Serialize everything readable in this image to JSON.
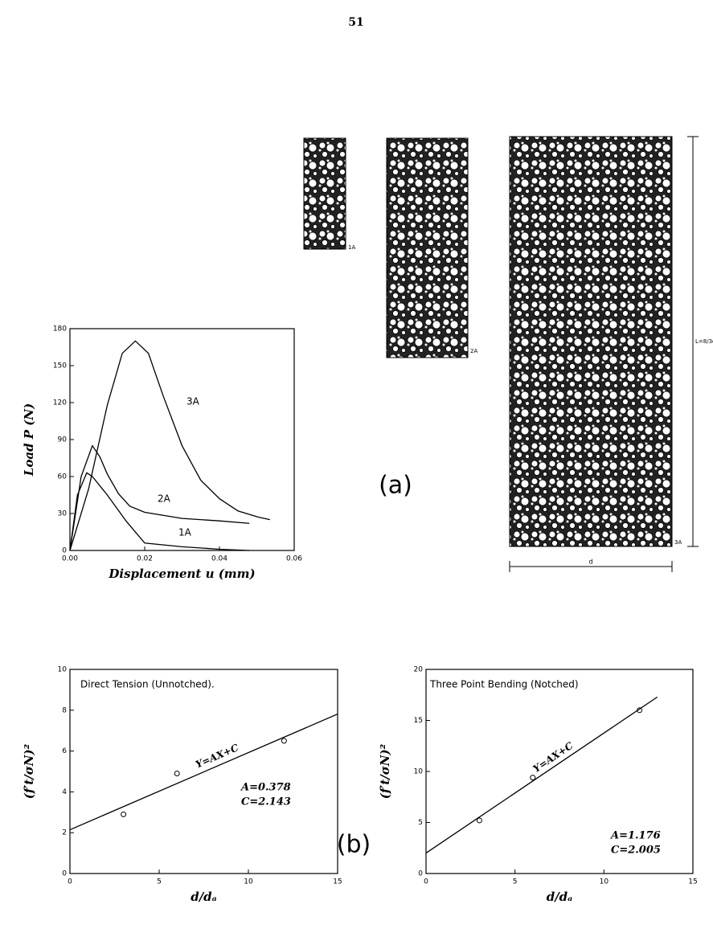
{
  "page_number": "51",
  "figure": {
    "label_a": "(a)",
    "label_b": "(b)",
    "specimens": [
      {
        "label": "1A"
      },
      {
        "label": "2A"
      },
      {
        "label": "3A"
      }
    ],
    "dim_length": "L=8/3d",
    "dim_width": "d"
  },
  "chart_data": [
    {
      "type": "line",
      "ylabel": "Load P (N)",
      "xlabel": "Displacement u (mm)",
      "xlim": [
        0,
        0.06
      ],
      "xticks": [
        {
          "value": 0,
          "label": "0.00"
        },
        {
          "value": 0.02,
          "label": "0.02"
        },
        {
          "value": 0.04,
          "label": "0.04"
        },
        {
          "value": 0.06,
          "label": "0.06"
        }
      ],
      "ylim": [
        0,
        180
      ],
      "yticks": [
        0,
        30,
        60,
        90,
        120,
        150,
        180
      ],
      "series": [
        {
          "name": "3A",
          "color": "#000000",
          "x": [
            0,
            0.005,
            0.01,
            0.014,
            0.0175,
            0.021,
            0.025,
            0.03,
            0.035,
            0.04,
            0.045,
            0.0505,
            0.0535
          ],
          "values": [
            0,
            50,
            118,
            160,
            170,
            160,
            125,
            85,
            57,
            42,
            32,
            27,
            25
          ]
        },
        {
          "name": "2A",
          "color": "#000000",
          "x": [
            0,
            0.003,
            0.006,
            0.008,
            0.01,
            0.013,
            0.016,
            0.02,
            0.03,
            0.04,
            0.048
          ],
          "values": [
            0,
            60,
            85,
            76,
            62,
            46,
            36,
            31,
            26,
            24,
            22
          ]
        },
        {
          "name": "1A",
          "color": "#000000",
          "x": [
            0,
            0.002,
            0.0045,
            0.006,
            0.01,
            0.015,
            0.02,
            0.03,
            0.04,
            0.048
          ],
          "values": [
            0,
            45,
            63,
            60,
            45,
            24,
            6,
            3,
            1,
            0
          ]
        }
      ],
      "grid": false
    },
    {
      "type": "scatter",
      "title": "Direct Tension (Unnotched).",
      "ylabel": "(f′t/σN)²",
      "xlabel": "d/dₐ",
      "xlim": [
        0,
        15
      ],
      "xticks": [
        0,
        5,
        10,
        15
      ],
      "ylim": [
        0,
        10
      ],
      "yticks": [
        0,
        2,
        4,
        6,
        8,
        10
      ],
      "series": [
        {
          "color": "#000000",
          "x": [
            3,
            6,
            12
          ],
          "values": [
            2.9,
            4.9,
            6.5
          ]
        },
        {
          "name": "Y=AX+C",
          "color": "#000000",
          "x": [
            0,
            15
          ],
          "values": [
            2.143,
            7.813
          ]
        }
      ],
      "annotations": [
        "A=0.378",
        "C=2.143"
      ],
      "grid": false
    },
    {
      "type": "scatter",
      "title": "Three Point Bending (Notched)",
      "ylabel": "(f′t/σN)²",
      "xlabel": "d/dₐ",
      "xlim": [
        0,
        15
      ],
      "xticks": [
        0,
        5,
        10,
        15
      ],
      "ylim": [
        0,
        20
      ],
      "yticks": [
        0,
        5,
        10,
        15,
        20
      ],
      "series": [
        {
          "color": "#000000",
          "x": [
            3,
            6,
            12
          ],
          "values": [
            5.2,
            9.4,
            16
          ]
        },
        {
          "name": "Y=AX+C",
          "color": "#000000",
          "x": [
            0,
            13
          ],
          "values": [
            2.005,
            17.293
          ]
        }
      ],
      "annotations": [
        "A=1.176",
        "C=2.005"
      ],
      "grid": false
    }
  ]
}
